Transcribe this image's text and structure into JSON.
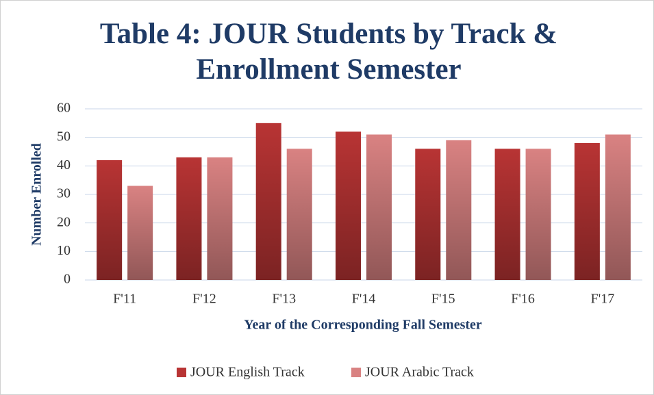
{
  "chart_data": {
    "type": "bar",
    "title": "Table 4: JOUR Students by Track & Enrollment Semester",
    "xlabel": "Year of the Corresponding Fall Semester",
    "ylabel": "Number Enrolled",
    "categories": [
      "F'11",
      "F'12",
      "F'13",
      "F'14",
      "F'15",
      "F'16",
      "F'17"
    ],
    "series": [
      {
        "name": "JOUR English Track",
        "color": "#b83434",
        "values": [
          42,
          43,
          55,
          52,
          46,
          46,
          48
        ]
      },
      {
        "name": "JOUR Arabic Track",
        "color": "#d98282",
        "values": [
          33,
          43,
          46,
          51,
          49,
          46,
          51
        ]
      }
    ],
    "ylim": [
      0,
      60
    ],
    "yticks": [
      0,
      10,
      20,
      30,
      40,
      50,
      60
    ],
    "grid": true,
    "legend": "bottom"
  }
}
